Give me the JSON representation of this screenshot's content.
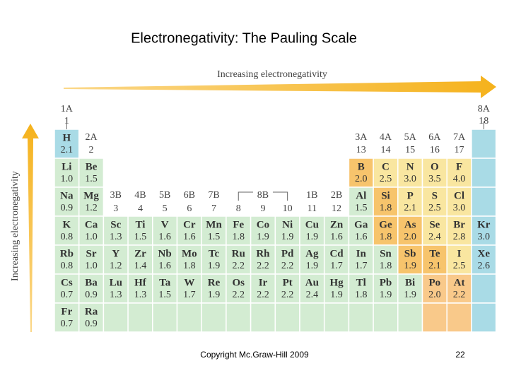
{
  "title": "Electronegativity:  The Pauling Scale",
  "top_arrow_label": "Increasing electronegativity",
  "side_arrow_label": "Increasing electronegativity",
  "group_names": [
    "1A",
    "2A",
    "3B",
    "4B",
    "5B",
    "6B",
    "7B",
    "8B",
    "1B",
    "2B",
    "3A",
    "4A",
    "5A",
    "6A",
    "7A",
    "8A"
  ],
  "group_numbers": [
    1,
    2,
    3,
    4,
    5,
    6,
    7,
    8,
    9,
    10,
    11,
    12,
    13,
    14,
    15,
    16,
    17,
    18
  ],
  "rows": [
    [
      {
        "symbol": "H",
        "en": "2.1"
      }
    ],
    [
      {
        "symbol": "Li",
        "en": "1.0"
      },
      {
        "symbol": "Be",
        "en": "1.5"
      },
      {
        "symbol": "B",
        "en": "2.0"
      },
      {
        "symbol": "C",
        "en": "2.5"
      },
      {
        "symbol": "N",
        "en": "3.0"
      },
      {
        "symbol": "O",
        "en": "3.5"
      },
      {
        "symbol": "F",
        "en": "4.0"
      }
    ],
    [
      {
        "symbol": "Na",
        "en": "0.9"
      },
      {
        "symbol": "Mg",
        "en": "1.2"
      },
      {
        "symbol": "Al",
        "en": "1.5"
      },
      {
        "symbol": "Si",
        "en": "1.8"
      },
      {
        "symbol": "P",
        "en": "2.1"
      },
      {
        "symbol": "S",
        "en": "2.5"
      },
      {
        "symbol": "Cl",
        "en": "3.0"
      }
    ],
    [
      {
        "symbol": "K",
        "en": "0.8"
      },
      {
        "symbol": "Ca",
        "en": "1.0"
      },
      {
        "symbol": "Sc",
        "en": "1.3"
      },
      {
        "symbol": "Ti",
        "en": "1.5"
      },
      {
        "symbol": "V",
        "en": "1.6"
      },
      {
        "symbol": "Cr",
        "en": "1.6"
      },
      {
        "symbol": "Mn",
        "en": "1.5"
      },
      {
        "symbol": "Fe",
        "en": "1.8"
      },
      {
        "symbol": "Co",
        "en": "1.9"
      },
      {
        "symbol": "Ni",
        "en": "1.9"
      },
      {
        "symbol": "Cu",
        "en": "1.9"
      },
      {
        "symbol": "Zn",
        "en": "1.6"
      },
      {
        "symbol": "Ga",
        "en": "1.6"
      },
      {
        "symbol": "Ge",
        "en": "1.8"
      },
      {
        "symbol": "As",
        "en": "2.0"
      },
      {
        "symbol": "Se",
        "en": "2.4"
      },
      {
        "symbol": "Br",
        "en": "2.8"
      },
      {
        "symbol": "Kr",
        "en": "3.0"
      }
    ],
    [
      {
        "symbol": "Rb",
        "en": "0.8"
      },
      {
        "symbol": "Sr",
        "en": "1.0"
      },
      {
        "symbol": "Y",
        "en": "1.2"
      },
      {
        "symbol": "Zr",
        "en": "1.4"
      },
      {
        "symbol": "Nb",
        "en": "1.6"
      },
      {
        "symbol": "Mo",
        "en": "1.8"
      },
      {
        "symbol": "Tc",
        "en": "1.9"
      },
      {
        "symbol": "Ru",
        "en": "2.2"
      },
      {
        "symbol": "Rh",
        "en": "2.2"
      },
      {
        "symbol": "Pd",
        "en": "2.2"
      },
      {
        "symbol": "Ag",
        "en": "1.9"
      },
      {
        "symbol": "Cd",
        "en": "1.7"
      },
      {
        "symbol": "In",
        "en": "1.7"
      },
      {
        "symbol": "Sn",
        "en": "1.8"
      },
      {
        "symbol": "Sb",
        "en": "1.9"
      },
      {
        "symbol": "Te",
        "en": "2.1"
      },
      {
        "symbol": "I",
        "en": "2.5"
      },
      {
        "symbol": "Xe",
        "en": "2.6"
      }
    ],
    [
      {
        "symbol": "Cs",
        "en": "0.7"
      },
      {
        "symbol": "Ba",
        "en": "0.9"
      },
      {
        "symbol": "Lu",
        "en": "1.3"
      },
      {
        "symbol": "Hf",
        "en": "1.3"
      },
      {
        "symbol": "Ta",
        "en": "1.5"
      },
      {
        "symbol": "W",
        "en": "1.7"
      },
      {
        "symbol": "Re",
        "en": "1.9"
      },
      {
        "symbol": "Os",
        "en": "2.2"
      },
      {
        "symbol": "Ir",
        "en": "2.2"
      },
      {
        "symbol": "Pt",
        "en": "2.2"
      },
      {
        "symbol": "Au",
        "en": "2.4"
      },
      {
        "symbol": "Hg",
        "en": "1.9"
      },
      {
        "symbol": "Tl",
        "en": "1.8"
      },
      {
        "symbol": "Pb",
        "en": "1.9"
      },
      {
        "symbol": "Bi",
        "en": "1.9"
      },
      {
        "symbol": "Po",
        "en": "2.0"
      },
      {
        "symbol": "At",
        "en": "2.2"
      }
    ],
    [
      {
        "symbol": "Fr",
        "en": "0.7"
      },
      {
        "symbol": "Ra",
        "en": "0.9"
      }
    ]
  ],
  "footer": "Copyright Mc.Graw-Hill 2009",
  "page_number": 22
}
